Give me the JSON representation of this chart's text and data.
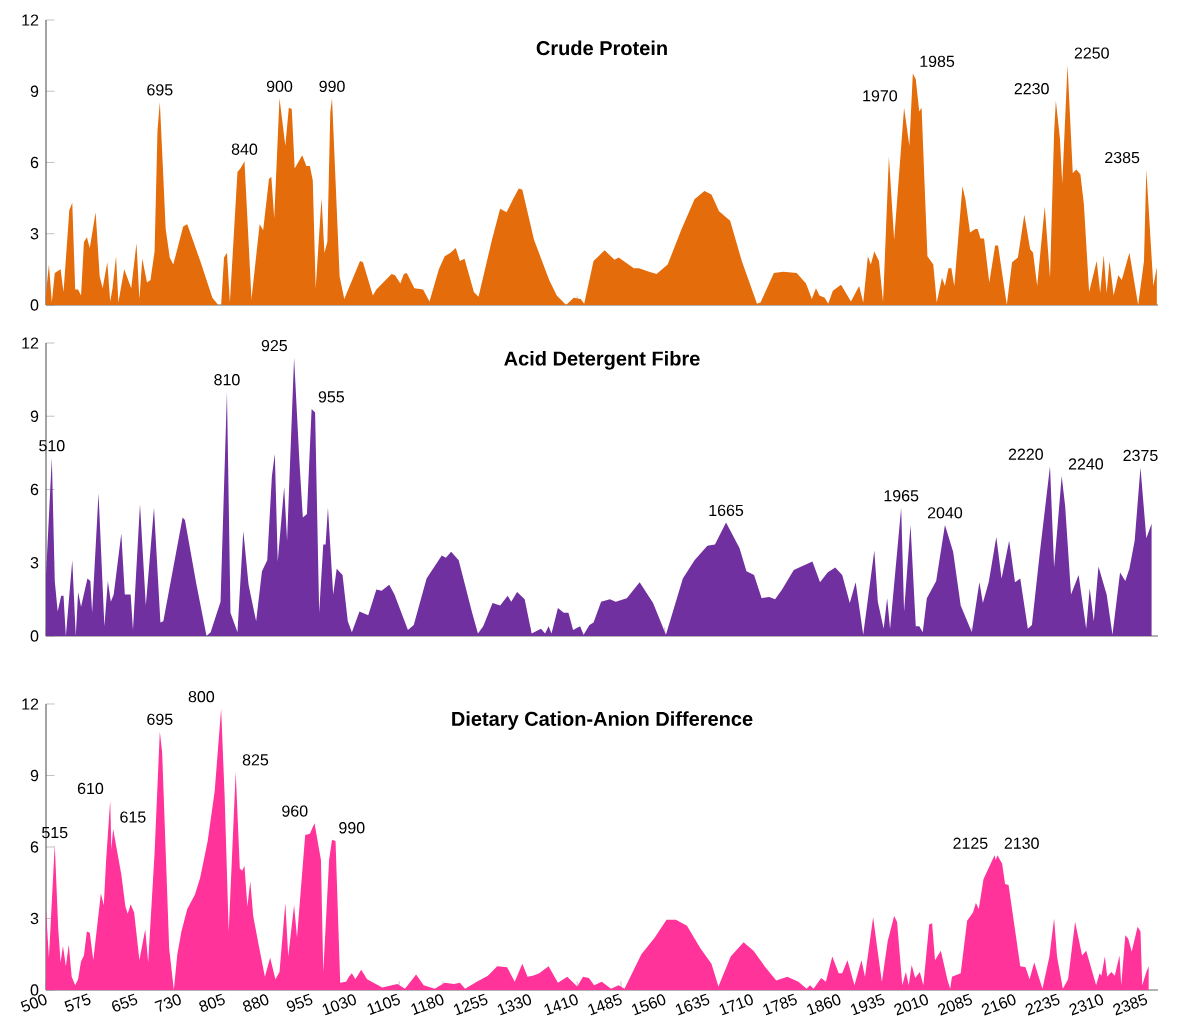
{
  "chart_data": [
    {
      "type": "area",
      "title": "Crude Protein",
      "color": "#e46c0a",
      "xlim": [
        500,
        2405
      ],
      "ylim": [
        0,
        12
      ],
      "yticks": [
        0,
        3,
        6,
        9,
        12
      ],
      "tick_labels": "y",
      "xticks": [
        500,
        575,
        655,
        730,
        805,
        880,
        955,
        1030,
        1105,
        1180,
        1255,
        1330,
        1410,
        1485,
        1560,
        1635,
        1710,
        1785,
        1860,
        1935,
        2010,
        2085,
        2160,
        2235,
        2310,
        2385
      ],
      "x": [
        500,
        505,
        510,
        515,
        525,
        530,
        540,
        545,
        550,
        555,
        560,
        565,
        570,
        575,
        585,
        592,
        597,
        605,
        610,
        614,
        620,
        624,
        634,
        646,
        655,
        660,
        665,
        673,
        679,
        686,
        691,
        695,
        700,
        705,
        712,
        718,
        735,
        742,
        765,
        785,
        795,
        800,
        805,
        810,
        815,
        828,
        833,
        840,
        852,
        866,
        872,
        882,
        886,
        891,
        900,
        910,
        916,
        921,
        926,
        939,
        946,
        952,
        957,
        962,
        972,
        977,
        982,
        987,
        990,
        1003,
        1011,
        1038,
        1043,
        1060,
        1066,
        1092,
        1098,
        1107,
        1113,
        1118,
        1131,
        1146,
        1157,
        1173,
        1183,
        1193,
        1202,
        1209,
        1217,
        1233,
        1241,
        1264,
        1278,
        1289,
        1300,
        1310,
        1316,
        1336,
        1362,
        1375,
        1391,
        1404,
        1416,
        1422,
        1438,
        1457,
        1474,
        1481,
        1507,
        1516,
        1533,
        1546,
        1565,
        1588,
        1611,
        1628,
        1640,
        1653,
        1672,
        1692,
        1718,
        1724,
        1747,
        1763,
        1786,
        1802,
        1812,
        1819,
        1825,
        1834,
        1840,
        1848,
        1862,
        1879,
        1893,
        1900,
        1908,
        1913,
        1919,
        1927,
        1934,
        1944,
        1953,
        1970,
        1979,
        1985,
        1990,
        1996,
        2000,
        2010,
        2020,
        2026,
        2035,
        2040,
        2046,
        2051,
        2056,
        2070,
        2075,
        2083,
        2092,
        2096,
        2101,
        2107,
        2116,
        2126,
        2131,
        2146,
        2155,
        2165,
        2176,
        2186,
        2191,
        2198,
        2211,
        2220,
        2227,
        2230,
        2237,
        2241,
        2250,
        2259,
        2265,
        2272,
        2278,
        2287,
        2300,
        2306,
        2312,
        2317,
        2322,
        2329,
        2337,
        2343,
        2356,
        2371,
        2381,
        2385,
        2397,
        2403
      ],
      "values": [
        0.5,
        1.7,
        0.1,
        1.35,
        1.5,
        0.55,
        4.0,
        4.3,
        0.65,
        0.65,
        0.4,
        2.65,
        2.85,
        2.4,
        3.9,
        1.2,
        0.7,
        1.8,
        0.15,
        0.7,
        2.05,
        0.1,
        1.5,
        0.7,
        2.6,
        0.25,
        1.95,
        0.95,
        1.05,
        2.25,
        7.35,
        8.55,
        5.9,
        3.2,
        2.0,
        1.7,
        3.3,
        3.4,
        1.8,
        0.3,
        0.0,
        0.0,
        2.0,
        2.2,
        0.1,
        5.6,
        5.75,
        6.05,
        0.25,
        3.4,
        3.15,
        5.3,
        5.4,
        3.65,
        8.7,
        6.7,
        8.3,
        8.25,
        5.75,
        6.3,
        5.85,
        5.85,
        5.25,
        0.7,
        4.5,
        2.2,
        2.65,
        8.1,
        8.7,
        1.2,
        0.25,
        1.85,
        1.8,
        0.4,
        0.65,
        1.3,
        1.25,
        0.9,
        1.3,
        1.35,
        0.7,
        0.65,
        0.15,
        1.5,
        2.05,
        2.2,
        2.4,
        1.85,
        1.95,
        0.55,
        0.35,
        2.75,
        4.05,
        3.9,
        4.45,
        4.9,
        4.85,
        2.75,
        1.05,
        0.4,
        0.0,
        0.3,
        0.25,
        0.05,
        1.85,
        2.3,
        1.9,
        2.0,
        1.55,
        1.55,
        1.4,
        1.3,
        1.7,
        3.15,
        4.45,
        4.8,
        4.65,
        3.95,
        3.55,
        1.85,
        0.05,
        0.1,
        1.35,
        1.4,
        1.35,
        0.9,
        0.25,
        0.7,
        0.4,
        0.3,
        0.05,
        0.6,
        0.85,
        0.15,
        0.8,
        0.1,
        2.05,
        1.7,
        2.25,
        1.85,
        0.1,
        6.25,
        2.75,
        8.3,
        6.7,
        9.75,
        9.5,
        8.15,
        8.3,
        2.05,
        1.7,
        0.1,
        1.15,
        0.8,
        1.55,
        1.55,
        0.8,
        5.0,
        4.45,
        3.05,
        3.2,
        3.2,
        2.8,
        2.8,
        0.95,
        2.5,
        2.5,
        0.0,
        1.8,
        2.0,
        3.8,
        2.35,
        2.2,
        0.8,
        4.15,
        1.15,
        7.25,
        8.6,
        7.0,
        5.1,
        10.1,
        5.55,
        5.7,
        5.5,
        4.25,
        0.55,
        1.85,
        0.5,
        2.1,
        0.5,
        1.85,
        0.4,
        1.25,
        1.05,
        2.2,
        0.0,
        1.85,
        5.7,
        0.8,
        1.6
      ],
      "annotations": [
        {
          "text": "695",
          "x": 695,
          "y": 8.55
        },
        {
          "text": "840",
          "x": 840,
          "y": 6.05
        },
        {
          "text": "900",
          "x": 900,
          "y": 8.7
        },
        {
          "text": "990",
          "x": 990,
          "y": 8.7
        },
        {
          "text": "1970",
          "x": 1970,
          "y": 8.3
        },
        {
          "text": "1985",
          "x": 1985,
          "y": 9.75
        },
        {
          "text": "2230",
          "x": 2230,
          "y": 8.6
        },
        {
          "text": "2250",
          "x": 2250,
          "y": 10.1
        },
        {
          "text": "2385",
          "x": 2385,
          "y": 5.7
        }
      ]
    },
    {
      "type": "area",
      "title": "Acid Detergent Fibre",
      "color": "#7030a0",
      "xlim": [
        500,
        2405
      ],
      "ylim": [
        0,
        12
      ],
      "yticks": [
        0,
        3,
        6,
        9,
        12
      ],
      "tick_labels": "y",
      "xticks": [
        500,
        575,
        655,
        730,
        805,
        880,
        955,
        1030,
        1105,
        1180,
        1255,
        1330,
        1410,
        1485,
        1560,
        1635,
        1710,
        1785,
        1860,
        1935,
        2010,
        2085,
        2160,
        2235,
        2310,
        2385
      ],
      "x": [
        500,
        510,
        515,
        520,
        526,
        530,
        534,
        545,
        551,
        555,
        560,
        571,
        576,
        579,
        590,
        600,
        606,
        611,
        616,
        629,
        635,
        645,
        649,
        661,
        671,
        685,
        696,
        701,
        734,
        738,
        757,
        775,
        782,
        799,
        810,
        816,
        828,
        838,
        847,
        860,
        870,
        879,
        887,
        892,
        897,
        908,
        913,
        925,
        934,
        940,
        947,
        955,
        961,
        968,
        975,
        979,
        983,
        992,
        998,
        1008,
        1017,
        1024,
        1037,
        1052,
        1066,
        1075,
        1088,
        1097,
        1108,
        1120,
        1130,
        1152,
        1178,
        1185,
        1194,
        1207,
        1230,
        1240,
        1249,
        1265,
        1278,
        1291,
        1297,
        1307,
        1320,
        1332,
        1348,
        1355,
        1361,
        1366,
        1377,
        1387,
        1395,
        1403,
        1415,
        1421,
        1431,
        1438,
        1451,
        1466,
        1476,
        1495,
        1517,
        1540,
        1562,
        1591,
        1611,
        1633,
        1646,
        1665,
        1688,
        1700,
        1713,
        1726,
        1739,
        1749,
        1761,
        1781,
        1794,
        1813,
        1826,
        1839,
        1852,
        1864,
        1877,
        1887,
        1900,
        1919,
        1925,
        1935,
        1941,
        1946,
        1965,
        1970,
        1981,
        1990,
        1996,
        2002,
        2009,
        2025,
        2040,
        2054,
        2067,
        2086,
        2099,
        2105,
        2115,
        2128,
        2137,
        2150,
        2160,
        2169,
        2182,
        2189,
        2202,
        2220,
        2227,
        2240,
        2246,
        2256,
        2269,
        2282,
        2288,
        2295,
        2303,
        2317,
        2327,
        2340,
        2349,
        2356,
        2365,
        2375,
        2385,
        2394
      ],
      "values": [
        2.5,
        7.3,
        2.25,
        1.0,
        1.65,
        1.65,
        0.0,
        3.1,
        0.0,
        1.8,
        1.2,
        2.35,
        2.25,
        0.95,
        5.85,
        0.4,
        2.25,
        1.4,
        1.7,
        4.2,
        1.7,
        1.7,
        0.25,
        5.4,
        1.25,
        5.25,
        0.55,
        0.6,
        4.85,
        4.75,
        2.2,
        0.0,
        0.15,
        1.4,
        10.0,
        0.95,
        0.15,
        4.3,
        2.1,
        0.6,
        2.65,
        3.1,
        6.55,
        7.45,
        3.05,
        6.1,
        3.9,
        11.4,
        7.2,
        4.85,
        5.0,
        9.3,
        9.15,
        0.95,
        3.75,
        3.75,
        5.25,
        1.7,
        2.75,
        2.5,
        0.6,
        0.15,
        1.0,
        0.85,
        1.9,
        1.85,
        2.1,
        1.7,
        1.0,
        0.25,
        0.45,
        2.35,
        3.3,
        3.2,
        3.45,
        3.1,
        0.95,
        0.1,
        0.4,
        1.35,
        1.25,
        1.65,
        1.4,
        1.8,
        1.5,
        0.1,
        0.3,
        0.1,
        0.4,
        0.1,
        1.15,
        0.95,
        0.95,
        0.25,
        0.4,
        0.05,
        0.45,
        0.55,
        1.4,
        1.5,
        1.4,
        1.55,
        2.2,
        1.35,
        0.05,
        2.35,
        3.1,
        3.7,
        3.75,
        4.65,
        3.6,
        2.65,
        2.5,
        1.55,
        1.6,
        1.5,
        1.9,
        2.7,
        2.85,
        3.05,
        2.2,
        2.6,
        2.8,
        2.5,
        1.35,
        2.2,
        0.05,
        3.5,
        1.4,
        0.3,
        1.55,
        0.3,
        5.25,
        1.0,
        4.55,
        0.4,
        0.4,
        0.15,
        1.55,
        2.25,
        4.55,
        3.45,
        1.25,
        0.15,
        2.2,
        1.35,
        2.2,
        4.05,
        2.35,
        3.9,
        2.2,
        2.35,
        0.3,
        0.45,
        3.3,
        6.95,
        2.8,
        6.55,
        5.3,
        1.7,
        2.5,
        0.3,
        1.95,
        0.6,
        2.85,
        1.7,
        0.05,
        2.6,
        2.25,
        2.75,
        3.9,
        6.9,
        4.0,
        4.6
      ],
      "annotations": [
        {
          "text": "510",
          "x": 510,
          "y": 7.3
        },
        {
          "text": "810",
          "x": 810,
          "y": 10.0
        },
        {
          "text": "925",
          "x": 925,
          "y": 11.4
        },
        {
          "text": "955",
          "x": 955,
          "y": 9.3
        },
        {
          "text": "1665",
          "x": 1665,
          "y": 4.65
        },
        {
          "text": "1965",
          "x": 1965,
          "y": 5.25
        },
        {
          "text": "2040",
          "x": 2040,
          "y": 4.55
        },
        {
          "text": "2220",
          "x": 2220,
          "y": 6.95
        },
        {
          "text": "2240",
          "x": 2240,
          "y": 6.55
        },
        {
          "text": "2375",
          "x": 2375,
          "y": 6.9
        }
      ]
    },
    {
      "type": "area",
      "title": "Dietary Cation-Anion Difference",
      "color": "#ff3399",
      "xlim": [
        500,
        2405
      ],
      "ylim": [
        0,
        12
      ],
      "yticks": [
        0,
        3,
        6,
        9,
        12
      ],
      "xticks": [
        500,
        575,
        655,
        730,
        805,
        880,
        955,
        1030,
        1105,
        1180,
        1255,
        1330,
        1410,
        1485,
        1560,
        1635,
        1710,
        1785,
        1860,
        1935,
        2010,
        2085,
        2160,
        2235,
        2310,
        2385
      ],
      "x": [
        500,
        505,
        515,
        521,
        525,
        529,
        534,
        539,
        544,
        550,
        555,
        560,
        565,
        570,
        575,
        581,
        594,
        599,
        603,
        610,
        612,
        615,
        629,
        636,
        640,
        645,
        651,
        660,
        670,
        675,
        686,
        695,
        699,
        711,
        719,
        725,
        732,
        742,
        755,
        764,
        777,
        789,
        800,
        806,
        813,
        825,
        832,
        836,
        840,
        845,
        850,
        855,
        863,
        875,
        884,
        893,
        900,
        910,
        915,
        925,
        930,
        944,
        952,
        960,
        971,
        975,
        985,
        990,
        996,
        1004,
        1014,
        1019,
        1024,
        1030,
        1040,
        1050,
        1076,
        1102,
        1115,
        1134,
        1147,
        1166,
        1183,
        1199,
        1209,
        1218,
        1238,
        1257,
        1273,
        1290,
        1303,
        1316,
        1325,
        1334,
        1345,
        1361,
        1377,
        1393,
        1410,
        1420,
        1430,
        1439,
        1452,
        1468,
        1481,
        1491,
        1520,
        1543,
        1563,
        1579,
        1598,
        1621,
        1640,
        1652,
        1673,
        1695,
        1712,
        1731,
        1751,
        1770,
        1789,
        1803,
        1809,
        1815,
        1828,
        1836,
        1847,
        1858,
        1864,
        1873,
        1885,
        1897,
        1903,
        1917,
        1924,
        1932,
        1942,
        1953,
        1958,
        1967,
        1973,
        1978,
        1983,
        1989,
        1997,
        2003,
        2013,
        2018,
        2023,
        2033,
        2044,
        2049,
        2052,
        2067,
        2078,
        2088,
        2093,
        2098,
        2106,
        2125,
        2127,
        2130,
        2138,
        2143,
        2149,
        2159,
        2169,
        2178,
        2185,
        2193,
        2207,
        2219,
        2227,
        2232,
        2242,
        2251,
        2263,
        2275,
        2282,
        2299,
        2305,
        2308,
        2314,
        2318,
        2325,
        2331,
        2339,
        2342,
        2349,
        2354,
        2360,
        2370,
        2375,
        2378,
        2385,
        2389
      ],
      "values": [
        3.35,
        1.35,
        6.1,
        2.55,
        1.15,
        1.85,
        1.0,
        1.9,
        0.55,
        0.2,
        0.45,
        1.2,
        1.45,
        2.45,
        2.4,
        1.25,
        4.05,
        3.55,
        5.45,
        7.95,
        5.9,
        6.75,
        4.85,
        3.5,
        3.2,
        3.6,
        3.25,
        1.25,
        2.55,
        1.15,
        5.75,
        10.85,
        9.95,
        1.75,
        0.0,
        1.5,
        2.45,
        3.4,
        4.0,
        4.7,
        6.25,
        8.35,
        11.8,
        8.15,
        2.45,
        9.15,
        5.1,
        5.0,
        5.2,
        3.5,
        4.55,
        3.1,
        2.05,
        0.55,
        1.35,
        0.45,
        0.75,
        3.65,
        1.4,
        3.55,
        2.2,
        6.5,
        6.55,
        7.0,
        5.45,
        0.75,
        5.45,
        6.3,
        6.25,
        0.3,
        0.35,
        0.55,
        0.7,
        0.45,
        0.85,
        0.45,
        0.1,
        0.25,
        0.05,
        0.65,
        0.2,
        0.05,
        0.3,
        0.25,
        0.3,
        0.05,
        0.35,
        0.6,
        1.0,
        0.95,
        0.35,
        1.1,
        0.55,
        0.6,
        0.7,
        1.0,
        0.3,
        0.55,
        0.15,
        0.55,
        0.5,
        0.2,
        0.35,
        0.05,
        0.2,
        0.05,
        1.5,
        2.2,
        2.95,
        2.95,
        2.7,
        1.75,
        1.1,
        0.15,
        1.4,
        2.0,
        1.65,
        1.0,
        0.4,
        0.55,
        0.35,
        0.05,
        0.2,
        0.05,
        0.5,
        0.35,
        1.4,
        0.7,
        0.7,
        1.25,
        0.2,
        1.25,
        0.55,
        3.05,
        1.75,
        0.35,
        2.05,
        3.1,
        2.85,
        0.2,
        0.75,
        0.2,
        1.05,
        0.5,
        0.75,
        0.2,
        2.75,
        2.8,
        1.25,
        1.65,
        0.45,
        0.05,
        0.55,
        0.7,
        2.9,
        3.25,
        3.65,
        3.4,
        4.65,
        5.65,
        5.45,
        5.65,
        5.3,
        4.45,
        4.4,
        2.7,
        1.0,
        0.95,
        0.45,
        1.15,
        0.05,
        1.4,
        3.0,
        1.4,
        0.05,
        0.45,
        2.85,
        1.45,
        1.65,
        0.2,
        0.7,
        0.6,
        1.4,
        0.55,
        0.75,
        0.6,
        1.45,
        0.2,
        2.3,
        2.15,
        1.6,
        2.65,
        2.45,
        0.2,
        0.75,
        1.0
      ],
      "annotations": [
        {
          "text": "515",
          "x": 515,
          "y": 6.1
        },
        {
          "text": "610",
          "x": 610,
          "y": 7.95
        },
        {
          "text": "615",
          "x": 615,
          "y": 6.75
        },
        {
          "text": "695",
          "x": 695,
          "y": 10.85
        },
        {
          "text": "800",
          "x": 800,
          "y": 11.8
        },
        {
          "text": "825",
          "x": 825,
          "y": 9.15
        },
        {
          "text": "960",
          "x": 960,
          "y": 7.0
        },
        {
          "text": "990",
          "x": 990,
          "y": 6.3
        },
        {
          "text": "2125",
          "x": 2125,
          "y": 5.65
        },
        {
          "text": "2130",
          "x": 2130,
          "y": 5.65
        }
      ]
    }
  ]
}
